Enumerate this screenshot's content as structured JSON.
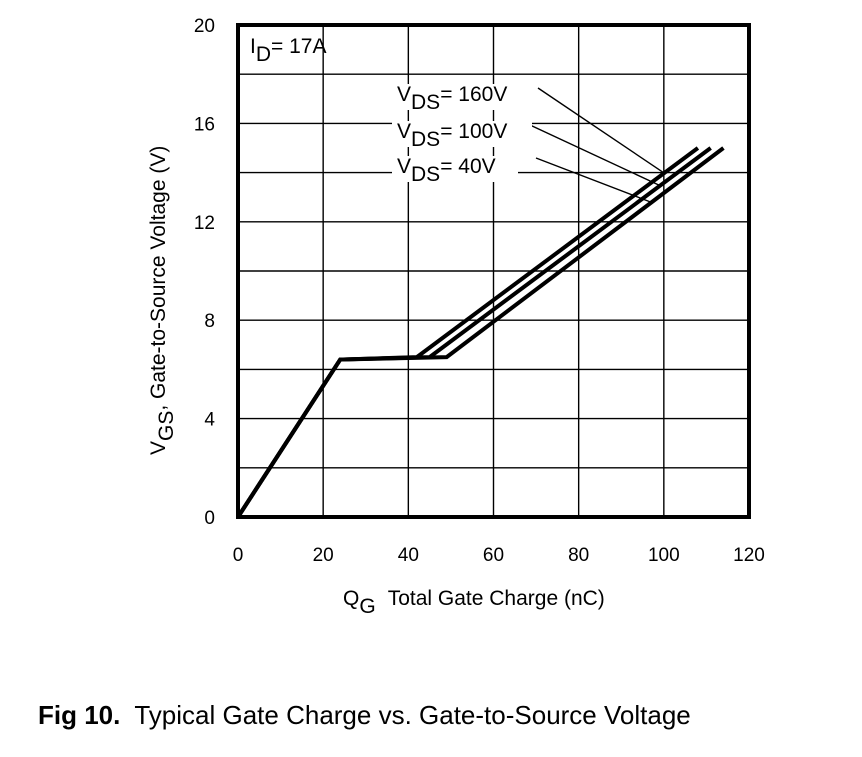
{
  "chart_data": {
    "type": "line",
    "title": "",
    "xlabel": {
      "main": "Q",
      "sub": "G",
      "rest": "Total Gate Charge (nC)"
    },
    "ylabel": {
      "main": "V",
      "sub": "GS",
      "rest": ", Gate-to-Source Voltage (V)"
    },
    "xlim": [
      0,
      120
    ],
    "ylim": [
      0,
      20
    ],
    "xticks": [
      0,
      20,
      40,
      60,
      80,
      100,
      120
    ],
    "yticks": [
      0,
      4,
      8,
      12,
      16,
      20
    ],
    "x_grid": [
      0,
      20,
      40,
      60,
      80,
      100,
      120
    ],
    "y_grid": [
      0,
      2,
      4,
      6,
      8,
      10,
      12,
      14,
      16,
      18,
      20
    ],
    "grid": true,
    "condition": {
      "main": "I",
      "sub": "D",
      "rest": "= 17A"
    },
    "series": [
      {
        "name": "VDS= 160V",
        "label": {
          "main": "V",
          "sub": "DS",
          "rest": "= 160V"
        },
        "x": [
          0,
          24,
          42,
          108
        ],
        "y": [
          0,
          6.4,
          6.5,
          15.0
        ]
      },
      {
        "name": "VDS= 100V",
        "label": {
          "main": "V",
          "sub": "DS",
          "rest": "= 100V"
        },
        "x": [
          0,
          24,
          45,
          111
        ],
        "y": [
          0,
          6.4,
          6.5,
          15.0
        ]
      },
      {
        "name": "VDS= 40V",
        "label": {
          "main": "V",
          "sub": "DS",
          "rest": "= 40V"
        },
        "x": [
          0,
          24,
          49,
          114
        ],
        "y": [
          0,
          6.4,
          6.5,
          15.0
        ]
      }
    ]
  },
  "caption": {
    "number": "Fig 10.",
    "text": "Typical Gate Charge vs. Gate-to-Source Voltage"
  },
  "colors": {
    "line": "#000000",
    "grid": "#000000",
    "background": "#ffffff"
  }
}
